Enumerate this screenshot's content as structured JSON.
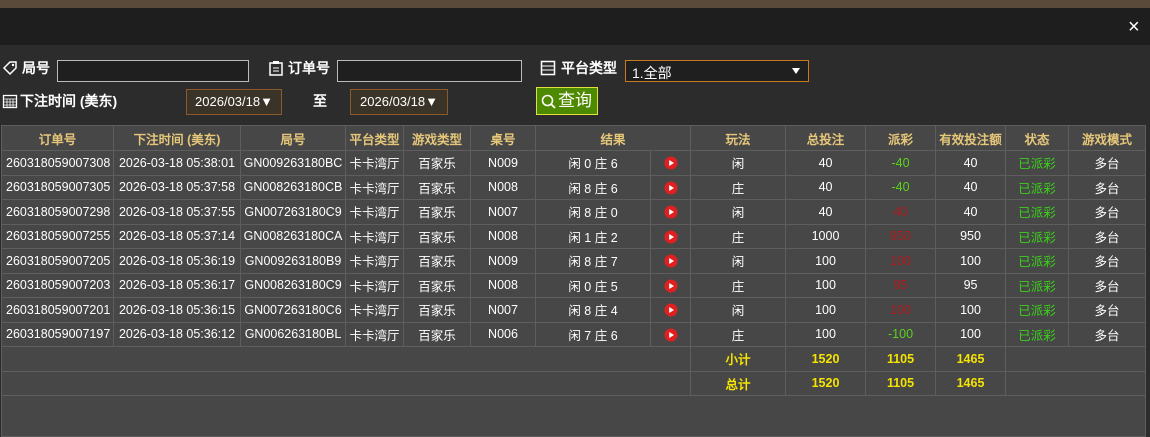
{
  "close": "×",
  "filters": {
    "round_label": "局号",
    "order_label": "订单号",
    "platform_label": "平台类型",
    "platform_value": "1.全部",
    "time_label": "下注时间 (美东)",
    "date_from": "2026/03/18▼",
    "to_label": "至",
    "date_to": "2026/03/18▼",
    "search": "查询"
  },
  "table": {
    "headers": [
      "订单号",
      "下注时间 (美东)",
      "局号",
      "平台类型",
      "游戏类型",
      "桌号",
      "结果",
      "玩法",
      "总投注",
      "派彩",
      "有效投注额",
      "状态",
      "游戏模式"
    ],
    "rows": [
      [
        "260318059007308",
        "2026-03-18 05:38:01",
        "GN009263180BC",
        "卡卡湾厅",
        "百家乐",
        "N009",
        "闲 0 庄 6",
        "闲",
        40,
        -40,
        40,
        "已派彩",
        "多台"
      ],
      [
        "260318059007305",
        "2026-03-18 05:37:58",
        "GN008263180CB",
        "卡卡湾厅",
        "百家乐",
        "N008",
        "闲 8 庄 6",
        "庄",
        40,
        -40,
        40,
        "已派彩",
        "多台"
      ],
      [
        "260318059007298",
        "2026-03-18 05:37:55",
        "GN007263180C9",
        "卡卡湾厅",
        "百家乐",
        "N007",
        "闲 8 庄 0",
        "闲",
        40,
        40,
        40,
        "已派彩",
        "多台"
      ],
      [
        "260318059007255",
        "2026-03-18 05:37:14",
        "GN008263180CA",
        "卡卡湾厅",
        "百家乐",
        "N008",
        "闲 1 庄 2",
        "庄",
        1000,
        950,
        950,
        "已派彩",
        "多台"
      ],
      [
        "260318059007205",
        "2026-03-18 05:36:19",
        "GN009263180B9",
        "卡卡湾厅",
        "百家乐",
        "N009",
        "闲 8 庄 7",
        "闲",
        100,
        100,
        100,
        "已派彩",
        "多台"
      ],
      [
        "260318059007203",
        "2026-03-18 05:36:17",
        "GN008263180C9",
        "卡卡湾厅",
        "百家乐",
        "N008",
        "闲 0 庄 5",
        "庄",
        100,
        95,
        95,
        "已派彩",
        "多台"
      ],
      [
        "260318059007201",
        "2026-03-18 05:36:15",
        "GN007263180C6",
        "卡卡湾厅",
        "百家乐",
        "N007",
        "闲 8 庄 4",
        "闲",
        100,
        100,
        100,
        "已派彩",
        "多台"
      ],
      [
        "260318059007197",
        "2026-03-18 05:36:12",
        "GN006263180BL",
        "卡卡湾厅",
        "百家乐",
        "N006",
        "闲 7 庄 6",
        "庄",
        100,
        -100,
        100,
        "已派彩",
        "多台"
      ]
    ],
    "subtotal": {
      "label": "小计",
      "bet": 1520,
      "payout": 1105,
      "valid": 1465
    },
    "total": {
      "label": "总计",
      "bet": 1520,
      "payout": 1105,
      "valid": 1465
    }
  }
}
